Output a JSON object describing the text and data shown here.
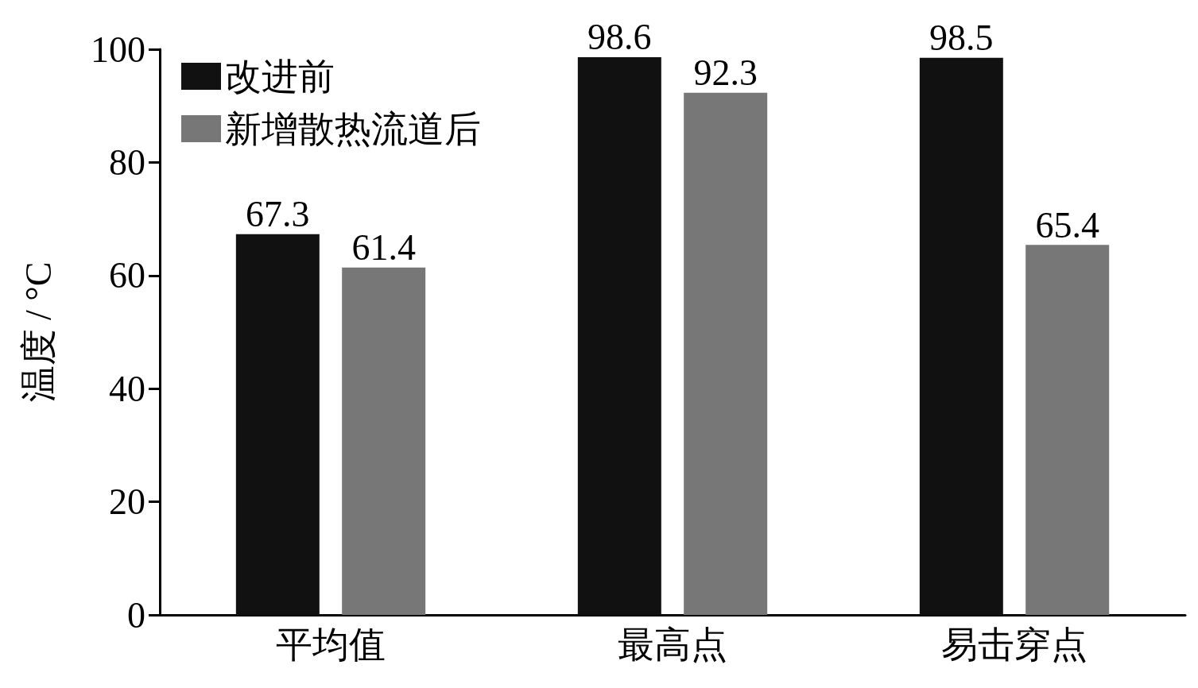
{
  "chart_data": {
    "type": "bar",
    "ylabel": "温度 / °C",
    "categories": [
      "平均值",
      "最高点",
      "易击穿点"
    ],
    "series": [
      {
        "name": "改进前",
        "color": "#111111",
        "values": [
          67.3,
          98.6,
          98.5
        ]
      },
      {
        "name": "新增散热流道后",
        "color": "#777777",
        "values": [
          61.4,
          92.3,
          65.4
        ]
      }
    ],
    "ylim": [
      0,
      100
    ],
    "yticks": [
      0,
      20,
      40,
      60,
      80,
      100
    ],
    "data_labels": true,
    "legend": "top left",
    "grid": false
  }
}
